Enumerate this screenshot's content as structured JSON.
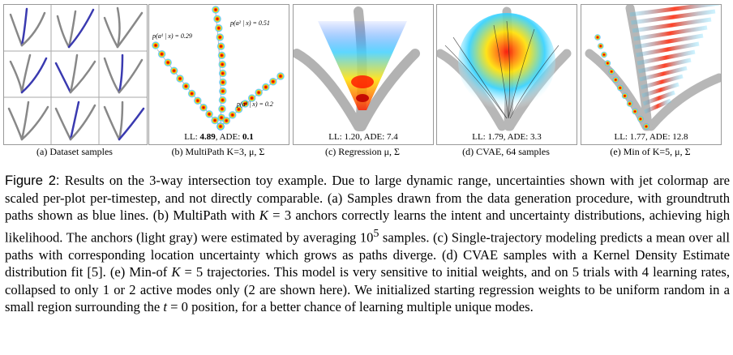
{
  "panels": [
    {
      "id": "a",
      "subcaption": "(a) Dataset samples",
      "ll_text": ""
    },
    {
      "id": "b",
      "subcaption": "(b) MultiPath K=3, μ, Σ",
      "ll_prefix": "LL: ",
      "ll_ll": "4.89",
      "ll_mid": ", ADE: ",
      "ll_ade": "0.1",
      "labels": [
        "p(a¹ | x) = 0.29",
        "p(a² | x) = 0.51",
        "p(a³ | x) = 0.2"
      ]
    },
    {
      "id": "c",
      "subcaption": "(c) Regression μ, Σ",
      "ll_text": "LL: 1.20, ADE: 7.4"
    },
    {
      "id": "d",
      "subcaption": "(d) CVAE, 64 samples",
      "ll_text": "LL: 1.79, ADE: 3.3"
    },
    {
      "id": "e",
      "subcaption": "(e) Min of K=5, μ, Σ",
      "ll_text": "LL: 1.77, ADE: 12.8"
    }
  ],
  "caption": {
    "figure_label": "Figure 2:",
    "p1": " Results on the 3-way intersection toy example. Due to large dynamic range, uncertainties shown with jet colormap are scaled per-plot per-timestep, and not directly comparable. (a) Samples drawn from the data generation procedure, with groundtruth paths shown as blue lines. (b) MultiPath with ",
    "k1": "K",
    "p2": " = 3 anchors correctly learns the intent and uncertainty distributions, achieving high likelihood. The anchors (light gray) were estimated by averaging 10",
    "exp": "5",
    "p3": " samples. (c) Single-trajectory modeling predicts a mean over all paths with corresponding location uncertainty which grows as paths diverge. (d) CVAE samples with a Kernel Density Estimate distribution fit [5]. (e) Min-of ",
    "k2": "K",
    "p4": " = 5 trajectories. This model is very sensitive to initial weights, and on 5 trials with 4 learning rates, collapsed to only 1 or 2 active modes only (2 are shown here). We initialized starting regression weights to be uniform random in a small region surrounding the ",
    "t": "t",
    "p5": " = 0 position, for a better chance of learning multiple unique modes."
  }
}
